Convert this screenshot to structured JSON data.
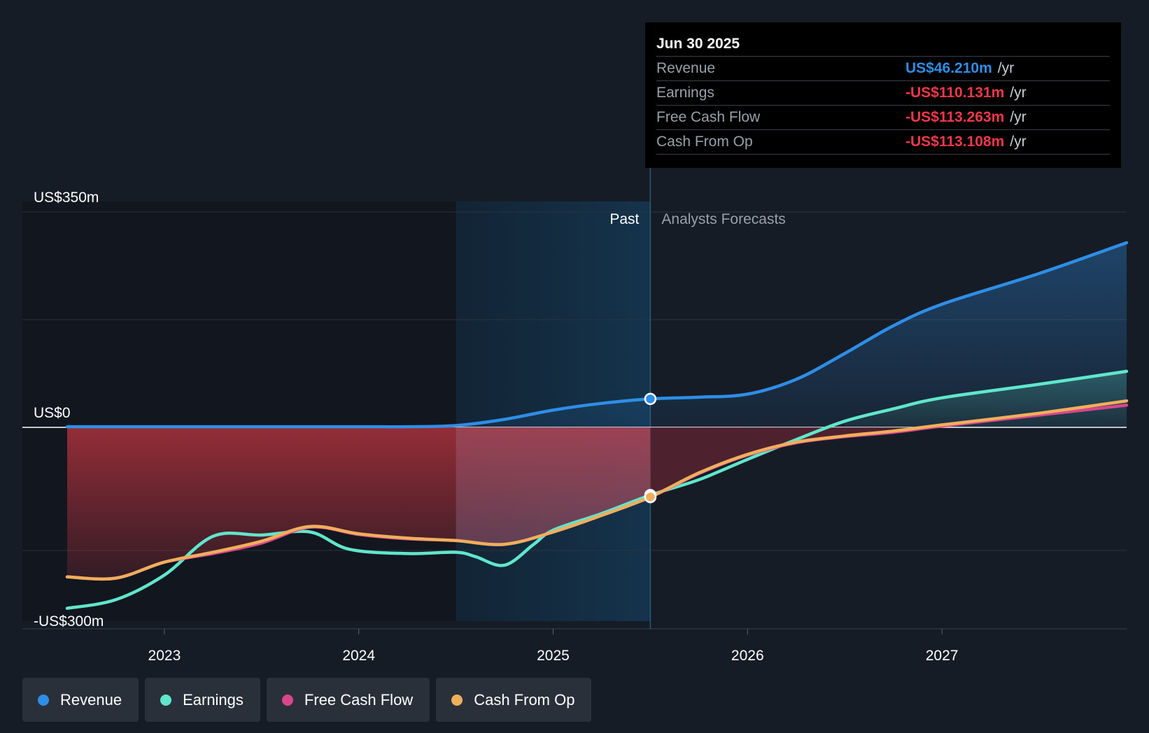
{
  "chart_data": {
    "type": "area",
    "tooltip": {
      "date": "Jun 30 2025",
      "rows": [
        {
          "label": "Revenue",
          "value": "US$46.210m",
          "unit": "/yr",
          "color": "#2e8ee6"
        },
        {
          "label": "Earnings",
          "value": "-US$110.131m",
          "unit": "/yr",
          "color": "#f0384b"
        },
        {
          "label": "Free Cash Flow",
          "value": "-US$113.263m",
          "unit": "/yr",
          "color": "#f0384b"
        },
        {
          "label": "Cash From Op",
          "value": "-US$113.108m",
          "unit": "/yr",
          "color": "#f0384b"
        }
      ]
    },
    "y_labels": [
      {
        "text": "US$350m",
        "value": 350
      },
      {
        "text": "US$0",
        "value": 0
      },
      {
        "text": "-US$300m",
        "value": -300
      }
    ],
    "ylim": [
      -300,
      350
    ],
    "xlim": [
      2022.5,
      2027.95
    ],
    "x_ticks": [
      {
        "text": "2023",
        "value": 2023.0
      },
      {
        "text": "2024",
        "value": 2024.0
      },
      {
        "text": "2025",
        "value": 2025.0
      },
      {
        "text": "2026",
        "value": 2026.0
      },
      {
        "text": "2027",
        "value": 2027.0
      }
    ],
    "past_label": "Past",
    "forecast_label": "Analysts Forecasts",
    "past_end": 2025.5,
    "highlight_start": 2024.5,
    "series": [
      {
        "name": "Revenue",
        "color": "#2e8ee6",
        "points": [
          [
            2022.5,
            1
          ],
          [
            2023.0,
            1
          ],
          [
            2023.5,
            1
          ],
          [
            2024.0,
            1
          ],
          [
            2024.25,
            1
          ],
          [
            2024.5,
            3
          ],
          [
            2024.75,
            13
          ],
          [
            2025.0,
            28
          ],
          [
            2025.25,
            39
          ],
          [
            2025.5,
            46.2
          ],
          [
            2025.75,
            49
          ],
          [
            2026.0,
            54
          ],
          [
            2026.25,
            78
          ],
          [
            2026.5,
            120
          ],
          [
            2026.75,
            165
          ],
          [
            2027.0,
            200
          ],
          [
            2027.5,
            250
          ],
          [
            2027.95,
            300
          ]
        ]
      },
      {
        "name": "Earnings",
        "color": "#60e6cc",
        "points": [
          [
            2022.5,
            -294
          ],
          [
            2022.75,
            -280
          ],
          [
            2023.0,
            -240
          ],
          [
            2023.25,
            -177
          ],
          [
            2023.5,
            -175
          ],
          [
            2023.75,
            -170
          ],
          [
            2023.95,
            -198
          ],
          [
            2024.25,
            -205
          ],
          [
            2024.5,
            -203
          ],
          [
            2024.6,
            -210
          ],
          [
            2024.75,
            -224
          ],
          [
            2024.9,
            -190
          ],
          [
            2025.0,
            -167
          ],
          [
            2025.25,
            -140
          ],
          [
            2025.5,
            -110.1
          ],
          [
            2025.75,
            -85
          ],
          [
            2026.0,
            -52
          ],
          [
            2026.25,
            -20
          ],
          [
            2026.5,
            10
          ],
          [
            2026.75,
            30
          ],
          [
            2027.0,
            48
          ],
          [
            2027.5,
            70
          ],
          [
            2027.95,
            91
          ]
        ]
      },
      {
        "name": "Free Cash Flow",
        "color": "#d9468c",
        "points": [
          [
            2022.5,
            -243
          ],
          [
            2022.75,
            -245
          ],
          [
            2023.0,
            -219
          ],
          [
            2023.25,
            -205
          ],
          [
            2023.5,
            -188
          ],
          [
            2023.75,
            -162
          ],
          [
            2024.0,
            -174
          ],
          [
            2024.25,
            -181
          ],
          [
            2024.5,
            -184
          ],
          [
            2024.75,
            -190
          ],
          [
            2025.0,
            -170
          ],
          [
            2025.25,
            -143
          ],
          [
            2025.5,
            -113.3
          ],
          [
            2025.75,
            -75
          ],
          [
            2026.0,
            -45
          ],
          [
            2026.25,
            -25
          ],
          [
            2026.5,
            -15
          ],
          [
            2026.75,
            -8
          ],
          [
            2027.0,
            2
          ],
          [
            2027.5,
            20
          ],
          [
            2027.95,
            36
          ]
        ]
      },
      {
        "name": "Cash From Op",
        "color": "#f0ae5c",
        "points": [
          [
            2022.5,
            -243
          ],
          [
            2022.75,
            -245
          ],
          [
            2023.0,
            -219
          ],
          [
            2023.25,
            -203
          ],
          [
            2023.5,
            -185
          ],
          [
            2023.75,
            -161
          ],
          [
            2024.0,
            -173
          ],
          [
            2024.25,
            -180
          ],
          [
            2024.5,
            -184
          ],
          [
            2024.75,
            -190
          ],
          [
            2025.0,
            -170
          ],
          [
            2025.25,
            -143
          ],
          [
            2025.5,
            -113.1
          ],
          [
            2025.75,
            -74
          ],
          [
            2026.0,
            -44
          ],
          [
            2026.25,
            -24
          ],
          [
            2026.5,
            -14
          ],
          [
            2026.75,
            -6
          ],
          [
            2027.0,
            4
          ],
          [
            2027.5,
            23
          ],
          [
            2027.95,
            43
          ]
        ]
      }
    ],
    "legend": [
      {
        "name": "Revenue",
        "color": "#2e8ee6"
      },
      {
        "name": "Earnings",
        "color": "#60e6cc"
      },
      {
        "name": "Free Cash Flow",
        "color": "#d9468c"
      },
      {
        "name": "Cash From Op",
        "color": "#f0ae5c"
      }
    ]
  }
}
